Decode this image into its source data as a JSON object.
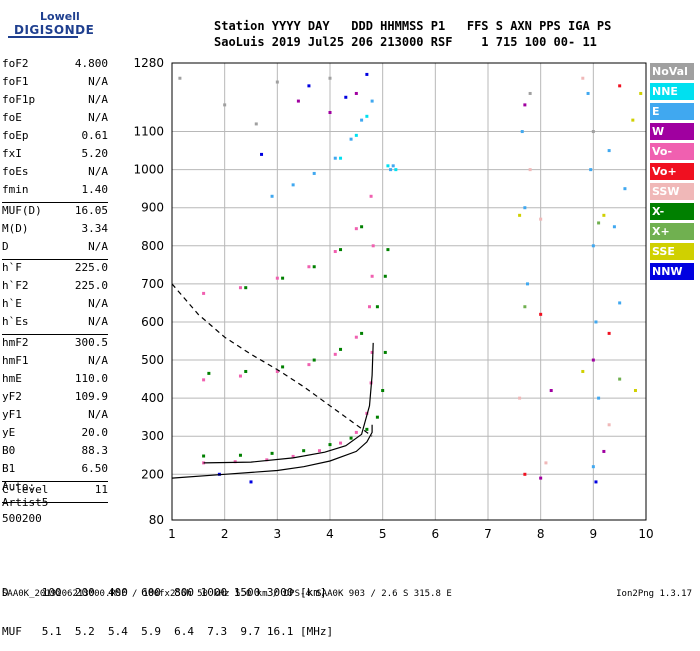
{
  "logo": {
    "line1": "Lowell",
    "line2": "DIGISONDE"
  },
  "header": {
    "line1": "Station YYYY DAY   DDD HHMMSS P1   FFS S AXN PPS IGA PS",
    "line2": "SaoLuis 2019 Jul25 206 213000 RSF    1 715 100 00- 11"
  },
  "params": [
    {
      "label": "foF2",
      "value": "4.800"
    },
    {
      "label": "foF1",
      "value": "N/A"
    },
    {
      "label": "foF1p",
      "value": "N/A"
    },
    {
      "label": "foE",
      "value": "N/A"
    },
    {
      "label": "foEp",
      "value": "0.61"
    },
    {
      "label": "fxI",
      "value": "5.20"
    },
    {
      "label": "foEs",
      "value": "N/A"
    },
    {
      "label": "fmin",
      "value": "1.40"
    },
    {
      "sep": true
    },
    {
      "label": "MUF(D)",
      "value": "16.05"
    },
    {
      "label": "M(D)",
      "value": "3.34"
    },
    {
      "label": "D",
      "value": "N/A"
    },
    {
      "sep": true
    },
    {
      "label": "h`F",
      "value": "225.0"
    },
    {
      "label": "h`F2",
      "value": "225.0"
    },
    {
      "label": "h`E",
      "value": "N/A"
    },
    {
      "label": "h`Es",
      "value": "N/A"
    },
    {
      "sep": true
    },
    {
      "label": "hmF2",
      "value": "300.5"
    },
    {
      "label": "hmF1",
      "value": "N/A"
    },
    {
      "label": "hmE",
      "value": "110.0"
    },
    {
      "label": "yF2",
      "value": "109.9"
    },
    {
      "label": "yF1",
      "value": "N/A"
    },
    {
      "label": "yE",
      "value": "20.0"
    },
    {
      "label": "B0",
      "value": "88.3"
    },
    {
      "label": "B1",
      "value": "6.50"
    },
    {
      "sep": true
    },
    {
      "label": "C-level",
      "value": "11"
    },
    {
      "sep": true
    }
  ],
  "auto": {
    "line1": "Auto:",
    "line2": "Artist5",
    "line3": "500200"
  },
  "dmuf": {
    "d_line": "D     100  200  400  600  800 1000 1500 3000 [km]",
    "muf_line": "MUF   5.1  5.2  5.4  5.9  6.4  7.3  9.7 16.1 [MHz]"
  },
  "footer": {
    "left": "SAA0K_2019206213000.RSF / 180fx256h 50 kHz 5.0 km / DPS-4 SAA0K 903 / 2.6 S 315.8 E",
    "right": "Ion2Png 1.3.17"
  },
  "legend": [
    {
      "label": "NoVal",
      "color": "#a0a0a0"
    },
    {
      "label": "NNE",
      "color": "#00e0f0"
    },
    {
      "label": "E",
      "color": "#40a8f0"
    },
    {
      "label": "W",
      "color": "#a000a0"
    },
    {
      "label": "Vo-",
      "color": "#f060b0"
    },
    {
      "label": "Vo+",
      "color": "#f01020"
    },
    {
      "label": "SSW",
      "color": "#f0b8b8"
    },
    {
      "label": "X-",
      "color": "#008000"
    },
    {
      "label": "X+",
      "color": "#70b050"
    },
    {
      "label": "SSE",
      "color": "#d0d000"
    },
    {
      "label": "NNW",
      "color": "#0000e0"
    }
  ],
  "chart_data": {
    "type": "scatter",
    "xlim": [
      1,
      10
    ],
    "ylim": [
      80,
      1280
    ],
    "x_ticks": [
      1,
      2,
      3,
      4,
      5,
      6,
      7,
      8,
      9,
      10
    ],
    "y_ticks": [
      80,
      200,
      300,
      400,
      500,
      600,
      700,
      800,
      900,
      1000,
      1100,
      1280
    ],
    "grid": true,
    "series": [
      {
        "name": "Vo-",
        "color": "#f060b0",
        "points": [
          [
            1.6,
            230
          ],
          [
            2.2,
            233
          ],
          [
            2.8,
            238
          ],
          [
            3.3,
            247
          ],
          [
            3.8,
            262
          ],
          [
            4.2,
            282
          ],
          [
            4.5,
            310
          ],
          [
            4.7,
            360
          ],
          [
            4.78,
            440
          ],
          [
            4.8,
            520
          ],
          [
            1.6,
            448
          ],
          [
            2.3,
            458
          ],
          [
            3.0,
            470
          ],
          [
            3.6,
            488
          ],
          [
            4.1,
            515
          ],
          [
            4.5,
            560
          ],
          [
            4.75,
            640
          ],
          [
            4.8,
            720
          ],
          [
            4.82,
            800
          ],
          [
            1.6,
            675
          ],
          [
            2.3,
            690
          ],
          [
            3.0,
            715
          ],
          [
            3.6,
            745
          ],
          [
            4.1,
            785
          ],
          [
            4.5,
            845
          ],
          [
            4.78,
            930
          ]
        ]
      },
      {
        "name": "X-",
        "color": "#008000",
        "points": [
          [
            1.6,
            248
          ],
          [
            2.3,
            250
          ],
          [
            2.9,
            255
          ],
          [
            3.5,
            262
          ],
          [
            4.0,
            278
          ],
          [
            4.4,
            295
          ],
          [
            4.7,
            318
          ],
          [
            4.9,
            350
          ],
          [
            5.0,
            420
          ],
          [
            5.05,
            520
          ],
          [
            1.7,
            465
          ],
          [
            2.4,
            470
          ],
          [
            3.1,
            482
          ],
          [
            3.7,
            500
          ],
          [
            4.2,
            528
          ],
          [
            4.6,
            570
          ],
          [
            4.9,
            640
          ],
          [
            5.05,
            720
          ],
          [
            5.1,
            790
          ],
          [
            2.4,
            690
          ],
          [
            3.1,
            715
          ],
          [
            3.7,
            745
          ],
          [
            4.2,
            790
          ],
          [
            4.6,
            850
          ]
        ]
      },
      {
        "name": "E",
        "color": "#40a8f0",
        "points": [
          [
            2.9,
            930
          ],
          [
            3.3,
            960
          ],
          [
            3.7,
            990
          ],
          [
            4.1,
            1030
          ],
          [
            4.4,
            1080
          ],
          [
            4.6,
            1130
          ],
          [
            4.8,
            1180
          ],
          [
            5.15,
            1000
          ],
          [
            5.2,
            1010
          ],
          [
            7.65,
            1100
          ],
          [
            7.7,
            900
          ],
          [
            7.75,
            700
          ],
          [
            8.9,
            1200
          ],
          [
            8.95,
            1000
          ],
          [
            9.0,
            800
          ],
          [
            9.05,
            600
          ],
          [
            9.1,
            400
          ],
          [
            9.0,
            220
          ],
          [
            9.3,
            1050
          ],
          [
            9.4,
            850
          ],
          [
            9.5,
            650
          ],
          [
            9.6,
            950
          ]
        ]
      },
      {
        "name": "NNE",
        "color": "#00e0f0",
        "points": [
          [
            4.2,
            1030
          ],
          [
            4.5,
            1090
          ],
          [
            4.7,
            1140
          ],
          [
            5.1,
            1010
          ],
          [
            5.25,
            1000
          ]
        ]
      },
      {
        "name": "W",
        "color": "#a000a0",
        "points": [
          [
            3.4,
            1180
          ],
          [
            4.0,
            1150
          ],
          [
            4.5,
            1200
          ],
          [
            7.7,
            1170
          ],
          [
            8.2,
            420
          ],
          [
            9.0,
            500
          ],
          [
            9.2,
            260
          ],
          [
            8.0,
            190
          ]
        ]
      },
      {
        "name": "Vo+",
        "color": "#f01020",
        "points": [
          [
            7.7,
            200
          ],
          [
            8.0,
            620
          ],
          [
            9.5,
            1220
          ],
          [
            9.3,
            570
          ]
        ]
      },
      {
        "name": "SSW",
        "color": "#f0b8b8",
        "points": [
          [
            7.6,
            400
          ],
          [
            7.8,
            1000
          ],
          [
            8.0,
            870
          ],
          [
            8.1,
            230
          ],
          [
            8.8,
            1240
          ],
          [
            9.3,
            330
          ]
        ]
      },
      {
        "name": "X+",
        "color": "#70b050",
        "points": [
          [
            7.7,
            640
          ],
          [
            9.1,
            860
          ],
          [
            9.5,
            450
          ]
        ]
      },
      {
        "name": "SSE",
        "color": "#d0d000",
        "points": [
          [
            7.6,
            880
          ],
          [
            8.8,
            470
          ],
          [
            9.2,
            880
          ],
          [
            9.8,
            420
          ],
          [
            9.75,
            1130
          ],
          [
            9.9,
            1200
          ]
        ]
      },
      {
        "name": "NNW",
        "color": "#0000e0",
        "points": [
          [
            3.6,
            1220
          ],
          [
            4.3,
            1190
          ],
          [
            1.9,
            200
          ],
          [
            2.5,
            180
          ],
          [
            2.7,
            1040
          ],
          [
            4.7,
            1250
          ],
          [
            9.05,
            180
          ]
        ]
      },
      {
        "name": "NoVal",
        "color": "#a0a0a0",
        "points": [
          [
            1.15,
            1240
          ],
          [
            2.0,
            1170
          ],
          [
            2.6,
            1120
          ],
          [
            3.0,
            1230
          ],
          [
            4.0,
            1240
          ],
          [
            7.8,
            1200
          ],
          [
            9.0,
            1100
          ]
        ]
      }
    ],
    "lines": [
      {
        "style": "solid",
        "points": [
          [
            1.0,
            190
          ],
          [
            2.0,
            200
          ],
          [
            3.0,
            210
          ],
          [
            3.5,
            220
          ],
          [
            4.0,
            235
          ],
          [
            4.5,
            260
          ],
          [
            4.7,
            285
          ],
          [
            4.8,
            310
          ],
          [
            4.8,
            330
          ]
        ]
      },
      {
        "style": "solid",
        "points": [
          [
            1.6,
            230
          ],
          [
            2.5,
            232
          ],
          [
            3.3,
            243
          ],
          [
            3.9,
            258
          ],
          [
            4.3,
            275
          ],
          [
            4.6,
            305
          ],
          [
            4.75,
            380
          ],
          [
            4.8,
            460
          ],
          [
            4.82,
            545
          ]
        ]
      },
      {
        "style": "dashed",
        "points": [
          [
            1.0,
            700
          ],
          [
            1.5,
            620
          ],
          [
            2.0,
            560
          ],
          [
            2.5,
            515
          ],
          [
            3.0,
            475
          ],
          [
            3.5,
            430
          ],
          [
            4.0,
            380
          ],
          [
            4.5,
            330
          ],
          [
            4.8,
            300
          ]
        ]
      }
    ]
  }
}
